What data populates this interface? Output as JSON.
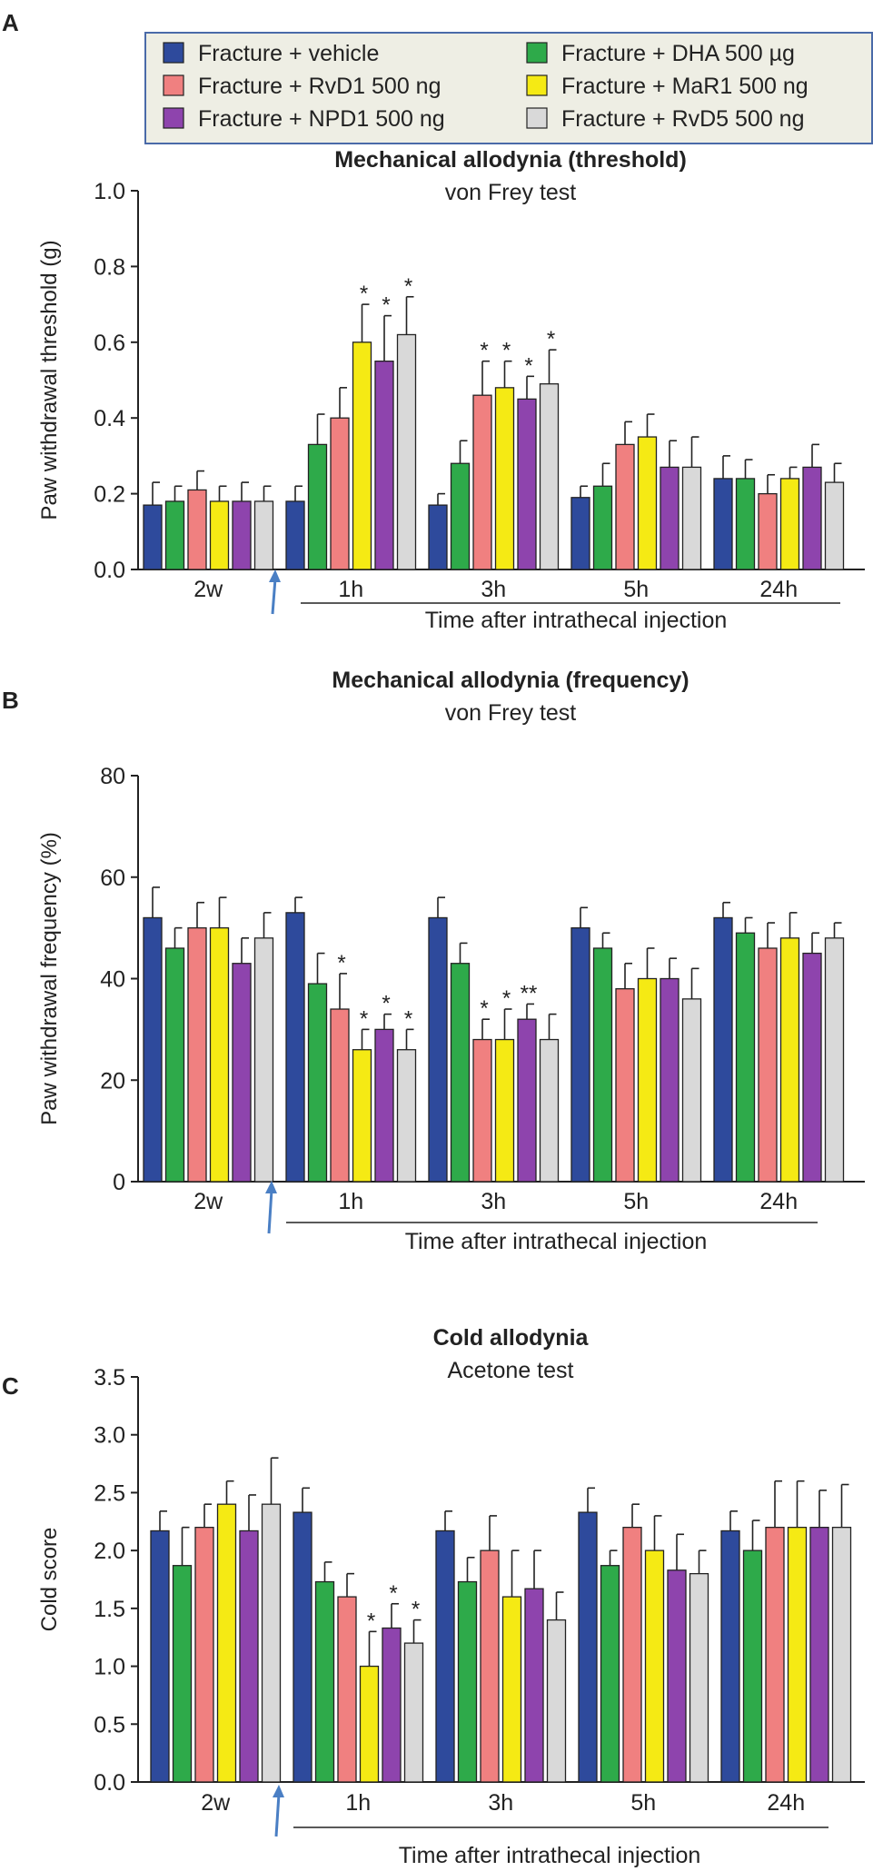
{
  "legend": {
    "items": [
      {
        "label": "Fracture + vehicle",
        "color": "#2e4a9c"
      },
      {
        "label": "Fracture + RvD1 500 ng",
        "color": "#f08080"
      },
      {
        "label": "Fracture + NPD1 500 ng",
        "color": "#8e44ad"
      },
      {
        "label": "Fracture + DHA 500 µg",
        "color": "#2eaa4a"
      },
      {
        "label": "Fracture + MaR1 500 ng",
        "color": "#f5ea14"
      },
      {
        "label": "Fracture + RvD5 500 ng",
        "color": "#d9d9d9"
      }
    ]
  },
  "chart_data": [
    {
      "panel": "A",
      "type": "bar",
      "title": "Mechanical allodynia (threshold)",
      "subtitle": "von Frey test",
      "ylabel": "Paw withdrawal threshold (g)",
      "xlabel": "Time after intrathecal injection",
      "ylim": [
        0,
        1.0
      ],
      "yticks": [
        "0.0",
        "0.2",
        "0.4",
        "0.6",
        "0.8",
        "1.0"
      ],
      "yticks_values": [
        0,
        0.2,
        0.4,
        0.6,
        0.8,
        1.0
      ],
      "categories": [
        "2w",
        "1h",
        "3h",
        "5h",
        "24h"
      ],
      "series_order": [
        "Fracture + vehicle",
        "Fracture + DHA 500 µg",
        "Fracture + RvD1 500 ng",
        "Fracture + MaR1 500 ng",
        "Fracture + NPD1 500 ng",
        "Fracture + RvD5 500 ng"
      ],
      "series_colors": [
        "#2e4a9c",
        "#2eaa4a",
        "#f08080",
        "#f5ea14",
        "#8e44ad",
        "#d9d9d9"
      ],
      "values": [
        [
          0.17,
          0.18,
          0.21,
          0.18,
          0.18,
          0.18
        ],
        [
          0.18,
          0.33,
          0.4,
          0.6,
          0.55,
          0.62
        ],
        [
          0.17,
          0.28,
          0.46,
          0.48,
          0.45,
          0.49
        ],
        [
          0.19,
          0.22,
          0.33,
          0.35,
          0.27,
          0.27
        ],
        [
          0.24,
          0.24,
          0.2,
          0.24,
          0.27,
          0.23
        ]
      ],
      "errors": [
        [
          0.06,
          0.04,
          0.05,
          0.04,
          0.05,
          0.04
        ],
        [
          0.04,
          0.08,
          0.08,
          0.1,
          0.12,
          0.1
        ],
        [
          0.03,
          0.06,
          0.09,
          0.07,
          0.06,
          0.09
        ],
        [
          0.03,
          0.06,
          0.06,
          0.06,
          0.07,
          0.08
        ],
        [
          0.06,
          0.05,
          0.05,
          0.03,
          0.06,
          0.05
        ]
      ],
      "significance": [
        [
          "",
          "",
          "",
          "",
          "",
          ""
        ],
        [
          "",
          "",
          "",
          "*",
          "*",
          "*"
        ],
        [
          "",
          "",
          "*",
          "*",
          "*",
          "*"
        ],
        [
          "",
          "",
          "",
          "",
          "",
          ""
        ],
        [
          "",
          "",
          "",
          "",
          "",
          ""
        ]
      ]
    },
    {
      "panel": "B",
      "type": "bar",
      "title": "Mechanical allodynia (frequency)",
      "subtitle": "von Frey test",
      "ylabel": "Paw withdrawal frequency (%)",
      "xlabel": "Time after intrathecal injection",
      "ylim": [
        0,
        80
      ],
      "yticks": [
        "0",
        "20",
        "40",
        "60",
        "80"
      ],
      "yticks_values": [
        0,
        20,
        40,
        60,
        80
      ],
      "categories": [
        "2w",
        "1h",
        "3h",
        "5h",
        "24h"
      ],
      "series_order": [
        "Fracture + vehicle",
        "Fracture + DHA 500 µg",
        "Fracture + RvD1 500 ng",
        "Fracture + MaR1 500 ng",
        "Fracture + NPD1 500 ng",
        "Fracture + RvD5 500 ng"
      ],
      "series_colors": [
        "#2e4a9c",
        "#2eaa4a",
        "#f08080",
        "#f5ea14",
        "#8e44ad",
        "#d9d9d9"
      ],
      "values": [
        [
          52,
          46,
          50,
          50,
          43,
          48
        ],
        [
          53,
          39,
          34,
          26,
          30,
          26
        ],
        [
          52,
          43,
          28,
          28,
          32,
          28
        ],
        [
          50,
          46,
          38,
          40,
          40,
          36
        ],
        [
          52,
          49,
          46,
          48,
          45,
          48
        ]
      ],
      "errors": [
        [
          6,
          4,
          5,
          6,
          5,
          5
        ],
        [
          3,
          6,
          7,
          4,
          3,
          4
        ],
        [
          4,
          4,
          4,
          6,
          3,
          5
        ],
        [
          4,
          3,
          5,
          6,
          4,
          6
        ],
        [
          3,
          3,
          5,
          5,
          4,
          3
        ]
      ],
      "significance": [
        [
          "",
          "",
          "",
          "",
          "",
          ""
        ],
        [
          "",
          "",
          "*",
          "*",
          "*",
          "*"
        ],
        [
          "",
          "",
          "*",
          "*",
          "**",
          ""
        ],
        [
          "",
          "",
          "",
          "",
          "",
          ""
        ],
        [
          "",
          "",
          "",
          "",
          "",
          ""
        ]
      ]
    },
    {
      "panel": "C",
      "type": "bar",
      "title": "Cold allodynia",
      "subtitle": "Acetone test",
      "ylabel": "Cold score",
      "xlabel": "Time after intrathecal injection",
      "ylim": [
        0,
        3.5
      ],
      "yticks": [
        "0.0",
        "0.5",
        "1.0",
        "1.5",
        "2.0",
        "2.5",
        "3.0",
        "3.5"
      ],
      "yticks_values": [
        0,
        0.5,
        1.0,
        1.5,
        2.0,
        2.5,
        3.0,
        3.5
      ],
      "categories": [
        "2w",
        "1h",
        "3h",
        "5h",
        "24h"
      ],
      "series_order": [
        "Fracture + vehicle",
        "Fracture + DHA 500 µg",
        "Fracture + RvD1 500 ng",
        "Fracture + MaR1 500 ng",
        "Fracture + NPD1 500 ng",
        "Fracture + RvD5 500 ng"
      ],
      "series_colors": [
        "#2e4a9c",
        "#2eaa4a",
        "#f08080",
        "#f5ea14",
        "#8e44ad",
        "#d9d9d9"
      ],
      "values": [
        [
          2.17,
          1.87,
          2.2,
          2.4,
          2.17,
          2.4
        ],
        [
          2.33,
          1.73,
          1.6,
          1.0,
          1.33,
          1.2
        ],
        [
          2.17,
          1.73,
          2.0,
          1.6,
          1.67,
          1.4
        ],
        [
          2.33,
          1.87,
          2.2,
          2.0,
          1.83,
          1.8
        ],
        [
          2.17,
          2.0,
          2.2,
          2.2,
          2.2,
          2.2
        ]
      ],
      "errors": [
        [
          0.17,
          0.33,
          0.2,
          0.2,
          0.31,
          0.4
        ],
        [
          0.21,
          0.17,
          0.2,
          0.3,
          0.21,
          0.2
        ],
        [
          0.17,
          0.21,
          0.3,
          0.4,
          0.33,
          0.24
        ],
        [
          0.21,
          0.13,
          0.2,
          0.3,
          0.31,
          0.2
        ],
        [
          0.17,
          0.26,
          0.4,
          0.4,
          0.32,
          0.37
        ]
      ],
      "significance": [
        [
          "",
          "",
          "",
          "",
          "",
          ""
        ],
        [
          "",
          "",
          "",
          "*",
          "*",
          "*"
        ],
        [
          "",
          "",
          "",
          "",
          "",
          ""
        ],
        [
          "",
          "",
          "",
          "",
          "",
          ""
        ],
        [
          "",
          "",
          "",
          "",
          "",
          ""
        ]
      ]
    }
  ]
}
